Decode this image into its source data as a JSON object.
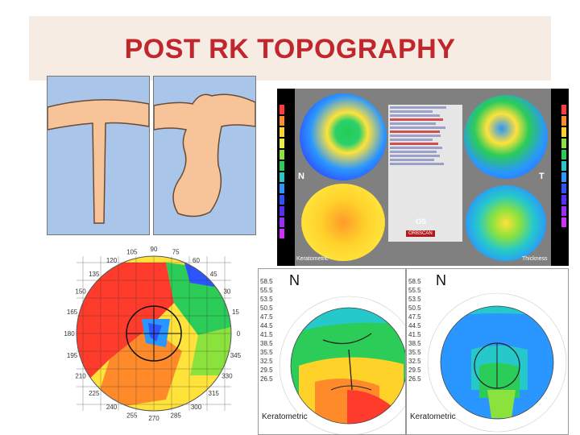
{
  "title": "POST RK TOPOGRAPHY",
  "topo_screen": {
    "left_label": "N",
    "right_label": "T",
    "eye_label": "OS",
    "brand": "ORBSCAN",
    "bottom_left_caption": "Keratometric",
    "bottom_right_caption": "Thickness"
  },
  "keratometric_maps": [
    {
      "orientation_label": "N",
      "caption": "Keratometric",
      "scale": [
        "58.5",
        "55.5",
        "53.5",
        "50.5",
        "47.5",
        "44.5",
        "41.5",
        "38.5",
        "35.5",
        "32.5",
        "29.5",
        "26.5"
      ]
    },
    {
      "orientation_label": "N",
      "caption": "Keratometric",
      "scale": [
        "58.5",
        "55.5",
        "53.5",
        "50.5",
        "47.5",
        "44.5",
        "41.5",
        "38.5",
        "35.5",
        "32.5",
        "29.5",
        "26.5"
      ]
    }
  ],
  "polar_map": {
    "angle_labels": [
      "0",
      "15",
      "30",
      "45",
      "60",
      "75",
      "90",
      "105",
      "120",
      "135",
      "150",
      "165",
      "180",
      "195",
      "210",
      "225",
      "240",
      "255",
      "270",
      "285",
      "300",
      "315",
      "330",
      "345"
    ]
  },
  "colors": {
    "title": "#c0262b",
    "title_band": "#f6ece4",
    "tissue": "#f7c49a",
    "fluid": "#a9c6ea"
  }
}
